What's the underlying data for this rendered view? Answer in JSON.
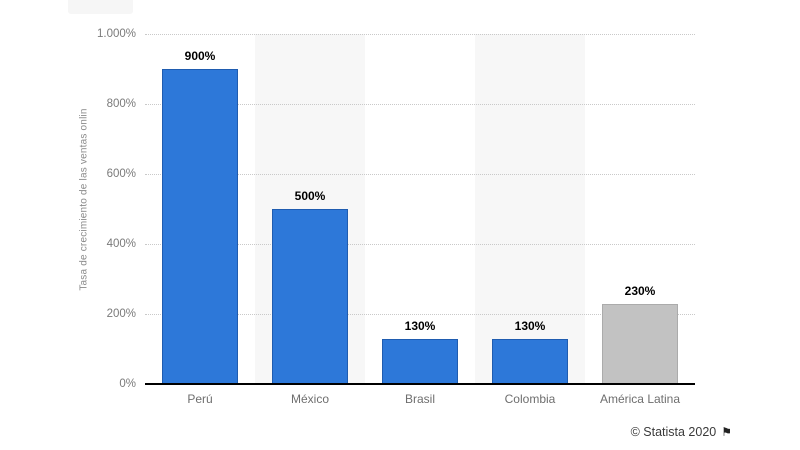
{
  "figure": {
    "background": "#ffffff",
    "footer": {
      "credit": "© Statista 2020",
      "flag_icon": "⚑"
    }
  },
  "chart_data": {
    "type": "bar",
    "title": "",
    "xlabel": "",
    "ylabel": "Tasa de crecimiento de las ventas onlin",
    "categories": [
      "Perú",
      "México",
      "Brasil",
      "Colombia",
      "América Latina"
    ],
    "values": [
      900,
      500,
      130,
      130,
      230
    ],
    "value_labels": [
      "900%",
      "500%",
      "130%",
      "130%",
      "230%"
    ],
    "bar_colors": [
      "#2d78d9",
      "#2d78d9",
      "#2d78d9",
      "#2d78d9",
      "#c2c2c2"
    ],
    "bar_border_colors": [
      "#1f5cb0",
      "#1f5cb0",
      "#1f5cb0",
      "#1f5cb0",
      "#ababab"
    ],
    "ylim": [
      0,
      1000
    ],
    "yticks": [
      {
        "label": "0%",
        "value": 0
      },
      {
        "label": "200%",
        "value": 200
      },
      {
        "label": "400%",
        "value": 400
      },
      {
        "label": "600%",
        "value": 600
      },
      {
        "label": "800%",
        "value": 800
      },
      {
        "label": "1.000%",
        "value": 1000
      }
    ],
    "grid": "horizontal-dotted",
    "gridline_color": "#c9c9c9",
    "legend": "none",
    "column_stripes": [
      false,
      true,
      false,
      true,
      false
    ],
    "stripe_color": "#f7f7f7",
    "accent_color": "#2d78d9",
    "neutral_color": "#c2c2c2"
  }
}
